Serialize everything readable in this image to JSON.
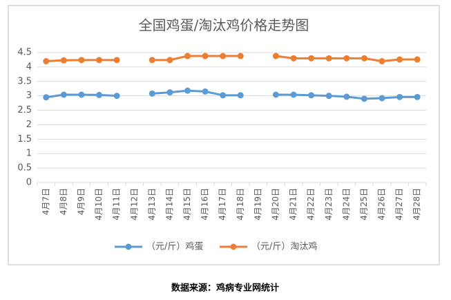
{
  "chart_data": {
    "type": "line",
    "title": "全国鸡蛋/淘汰鸡价格走势图",
    "categories": [
      "4月7日",
      "4月8日",
      "4月9日",
      "4月10日",
      "4月11日",
      "4月12日",
      "4月13日",
      "4月14日",
      "4月15日",
      "4月16日",
      "4月17日",
      "4月18日",
      "4月19日",
      "4月20日",
      "4月21日",
      "4月22日",
      "4月23日",
      "4月24日",
      "4月25日",
      "4月26日",
      "4月27日",
      "4月28日"
    ],
    "series": [
      {
        "name": "（元/斤）鸡蛋",
        "color": "#5b9bd5",
        "values": [
          2.95,
          3.04,
          3.04,
          3.03,
          3.0,
          null,
          3.08,
          3.12,
          3.18,
          3.15,
          3.02,
          3.02,
          null,
          3.04,
          3.04,
          3.02,
          3.0,
          2.97,
          2.9,
          2.92,
          2.96,
          2.96
        ]
      },
      {
        "name": "（元/斤）淘汰鸡",
        "color": "#ed7d31",
        "values": [
          4.2,
          4.23,
          4.24,
          4.24,
          4.24,
          null,
          4.24,
          4.24,
          4.38,
          4.38,
          4.38,
          4.38,
          null,
          4.38,
          4.3,
          4.3,
          4.3,
          4.3,
          4.3,
          4.2,
          4.26,
          4.26
        ]
      }
    ],
    "ylim": [
      0,
      4.5
    ],
    "yticks": [
      0,
      0.5,
      1,
      1.5,
      2,
      2.5,
      3,
      3.5,
      4,
      4.5
    ],
    "grid": true,
    "legend": "bottom",
    "source": "数据来源：鸡病专业网统计"
  }
}
